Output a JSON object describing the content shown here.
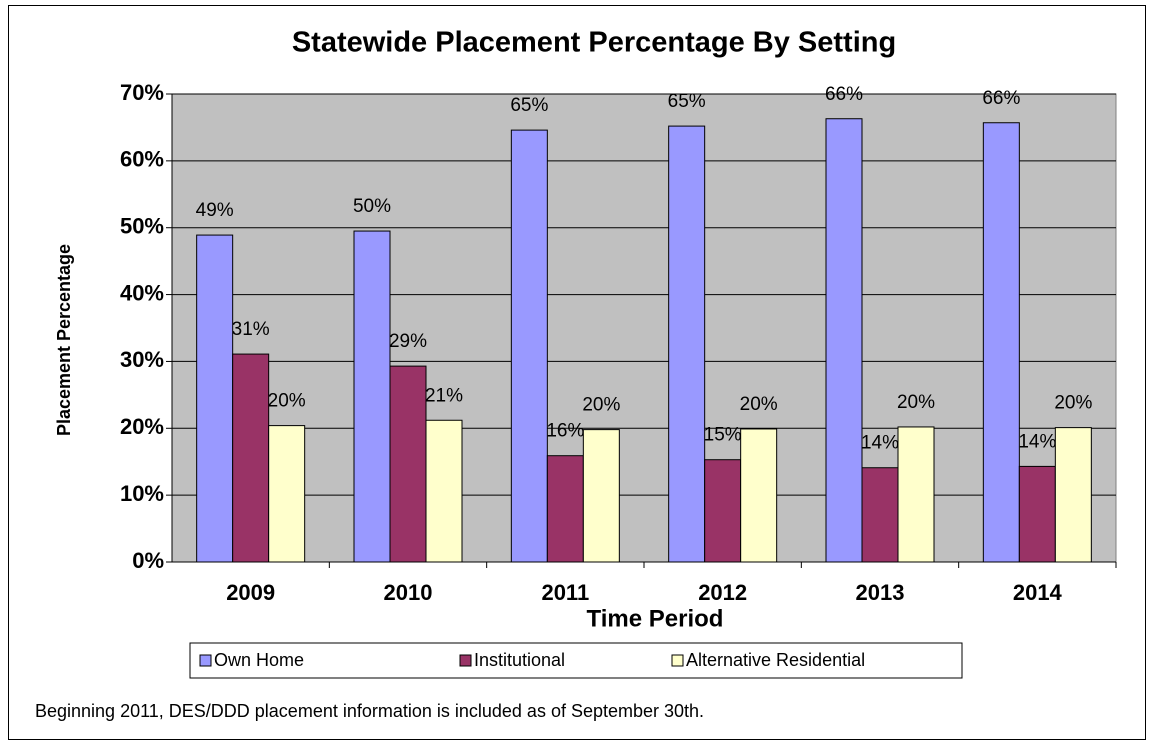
{
  "chart_data": {
    "type": "bar",
    "title": "Statewide Placement Percentage By Setting",
    "x_label": "Time Period",
    "y_label": "Placement Percentage",
    "note": "Beginning 2011, DES/DDD placement information is included as of  September 30th.",
    "categories": [
      "2009",
      "2010",
      "2011",
      "2012",
      "2013",
      "2014"
    ],
    "series": [
      {
        "name": "Own Home",
        "color": "#9999ff",
        "values": [
          48.9,
          49.5,
          64.6,
          65.2,
          66.3,
          65.7
        ],
        "value_labels": [
          "49%",
          "50%",
          "65%",
          "65%",
          "66%",
          "66%"
        ]
      },
      {
        "name": "Institutional",
        "color": "#993366",
        "values": [
          31.1,
          29.3,
          15.9,
          15.3,
          14.1,
          14.3
        ],
        "value_labels": [
          "31%",
          "29%",
          "16%",
          "15%",
          "14%",
          "14%"
        ]
      },
      {
        "name": "Alternative Residential",
        "color": "#ffffcc",
        "values": [
          20.4,
          21.2,
          19.8,
          19.9,
          20.2,
          20.1
        ],
        "value_labels": [
          "20%",
          "21%",
          "20%",
          "20%",
          "20%",
          "20%"
        ]
      }
    ],
    "ylim": [
      0,
      70
    ],
    "yticks": [
      {
        "value": 0,
        "label": "0%"
      },
      {
        "value": 10,
        "label": "10%"
      },
      {
        "value": 20,
        "label": "20%"
      },
      {
        "value": 30,
        "label": "30%"
      },
      {
        "value": 40,
        "label": "40%"
      },
      {
        "value": 50,
        "label": "50%"
      },
      {
        "value": 60,
        "label": "60%"
      },
      {
        "value": 70,
        "label": "70%"
      }
    ],
    "grid": true,
    "legend": "bottom"
  }
}
